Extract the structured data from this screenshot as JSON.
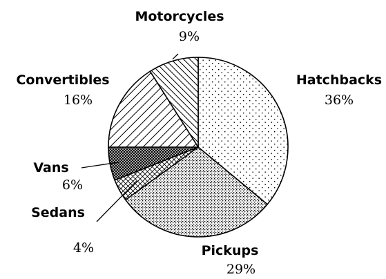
{
  "chart_data": {
    "type": "pie",
    "title": "",
    "categories": [
      "Hatchbacks",
      "Pickups",
      "Sedans",
      "Vans",
      "Convertibles",
      "Motorcycles"
    ],
    "values": [
      36,
      29,
      4,
      6,
      16,
      9
    ],
    "value_labels": [
      "36%",
      "29%",
      "4%",
      "6%",
      "16%",
      "9%"
    ],
    "fills": [
      "dots",
      "dense-dots",
      "crosshatch-sparse",
      "crosshatch-dense",
      "diagonal-lines",
      "diagonal-lines-fine"
    ],
    "legend": "none",
    "slice_order": "clockwise from top"
  }
}
